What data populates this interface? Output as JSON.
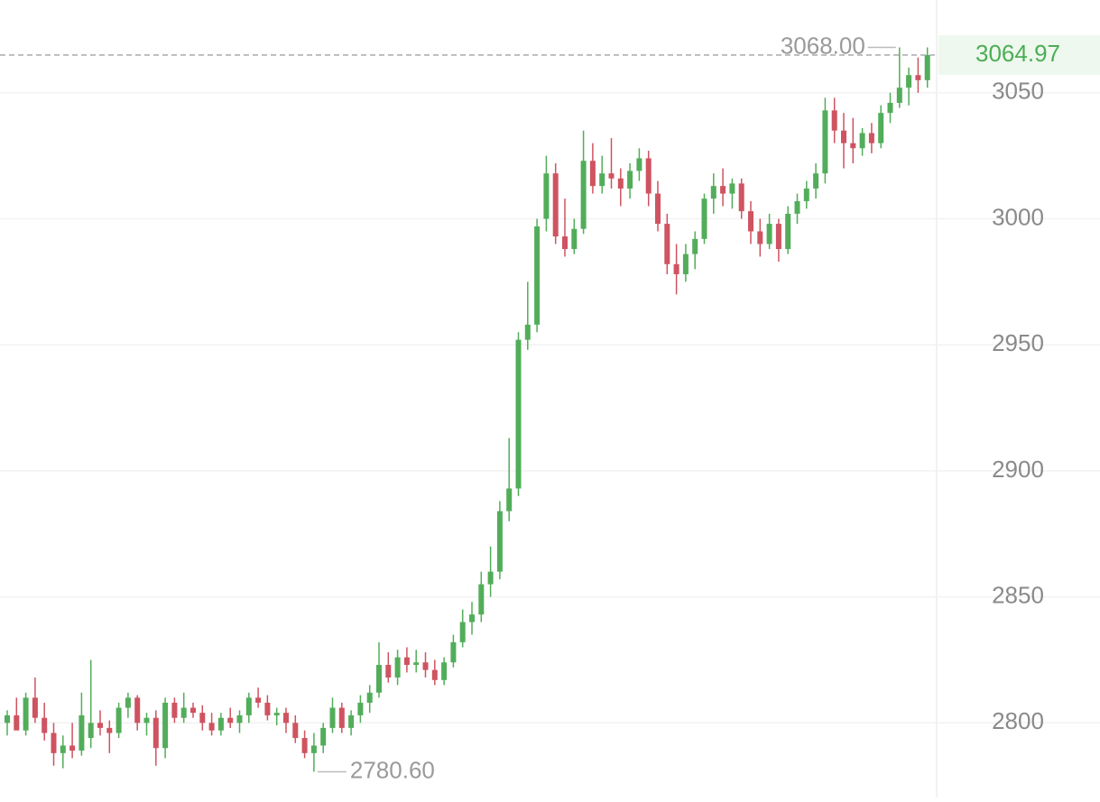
{
  "chart_data": {
    "type": "candlestick",
    "up_color": "#52ad5a",
    "down_color": "#cf5360",
    "grid": true,
    "ylim": [
      2770.4,
      3086.8
    ],
    "yticks": [
      2800,
      2850,
      2900,
      2950,
      3000,
      3050
    ],
    "last_price": {
      "value": 3064.97,
      "label": "3064.97"
    },
    "high_annotation": {
      "value": 3068,
      "label": "3068.00"
    },
    "low_annotation": {
      "value": 2780.6,
      "label": "2780.60"
    },
    "open": [
      2800,
      2803,
      2797,
      2810,
      2802,
      2796,
      2788,
      2791,
      2789,
      2794,
      2800,
      2798,
      2796,
      2806,
      2810,
      2800,
      2802,
      2790,
      2808,
      2802,
      2806,
      2804,
      2800,
      2797,
      2802,
      2800,
      2803,
      2810,
      2808,
      2803,
      2804,
      2800,
      2794,
      2788,
      2791,
      2798,
      2806,
      2798,
      2803,
      2808,
      2812,
      2823,
      2818,
      2826,
      2823,
      2824,
      2821,
      2817,
      2824,
      2832,
      2840,
      2843,
      2855,
      2860,
      2884,
      2893,
      2952,
      2958,
      3000,
      3018,
      2993,
      2988,
      2996,
      3023,
      3013,
      3018,
      3016,
      3012,
      3019,
      3024,
      3010,
      2998,
      2982,
      2978,
      2986,
      2992,
      3008,
      3013,
      3010,
      3014,
      3003,
      2995,
      2990,
      2998,
      2988,
      3002,
      3007,
      3012,
      3018,
      3043,
      3035,
      3030,
      3028,
      3034,
      3030,
      3042,
      3046,
      3052,
      3057,
      3055
    ],
    "high": [
      2805,
      2810,
      2812,
      2818,
      2808,
      2800,
      2795,
      2800,
      2812,
      2825,
      2805,
      2801,
      2808,
      2812,
      2811,
      2804,
      2805,
      2810,
      2810,
      2812,
      2808,
      2807,
      2804,
      2804,
      2806,
      2805,
      2812,
      2814,
      2811,
      2806,
      2806,
      2803,
      2797,
      2796,
      2800,
      2810,
      2808,
      2805,
      2811,
      2815,
      2832,
      2828,
      2829,
      2830,
      2829,
      2828,
      2825,
      2826,
      2835,
      2845,
      2848,
      2860,
      2870,
      2888,
      2913,
      2955,
      2975,
      3000,
      3025,
      3022,
      3008,
      3000,
      3035,
      3030,
      3025,
      3032,
      3020,
      3022,
      3028,
      3027,
      3015,
      3002,
      2990,
      2990,
      2995,
      3010,
      3018,
      3020,
      3016,
      3016,
      3007,
      3000,
      3002,
      3000,
      3005,
      3010,
      3015,
      3022,
      3048,
      3048,
      3042,
      3040,
      3036,
      3038,
      3045,
      3050,
      3068,
      3060,
      3064,
      3068
    ],
    "low": [
      2795,
      2798,
      2795,
      2800,
      2793,
      2783,
      2782,
      2786,
      2787,
      2790,
      2795,
      2788,
      2794,
      2802,
      2797,
      2795,
      2783,
      2786,
      2800,
      2800,
      2802,
      2797,
      2795,
      2795,
      2798,
      2796,
      2800,
      2806,
      2801,
      2799,
      2796,
      2792,
      2786,
      2780.6,
      2788,
      2796,
      2796,
      2795,
      2800,
      2804,
      2810,
      2816,
      2815,
      2820,
      2820,
      2818,
      2815,
      2815,
      2822,
      2830,
      2835,
      2840,
      2850,
      2857,
      2880,
      2890,
      2948,
      2955,
      2995,
      2990,
      2985,
      2986,
      2994,
      3010,
      3010,
      3012,
      3005,
      3008,
      3015,
      3005,
      2995,
      2978,
      2970,
      2975,
      2980,
      2990,
      3002,
      3005,
      3004,
      3000,
      2990,
      2985,
      2988,
      2983,
      2986,
      2998,
      3004,
      3008,
      3014,
      3030,
      3020,
      3022,
      3025,
      3026,
      3028,
      3038,
      3044,
      3045,
      3050,
      3052
    ],
    "close": [
      2803,
      2797,
      2810,
      2802,
      2796,
      2788,
      2791,
      2789,
      2803,
      2800,
      2798,
      2796,
      2806,
      2810,
      2800,
      2802,
      2790,
      2808,
      2802,
      2806,
      2804,
      2800,
      2797,
      2802,
      2800,
      2803,
      2810,
      2808,
      2803,
      2804,
      2800,
      2794,
      2788,
      2791,
      2798,
      2806,
      2798,
      2803,
      2808,
      2812,
      2823,
      2818,
      2826,
      2823,
      2824,
      2821,
      2817,
      2824,
      2832,
      2840,
      2843,
      2855,
      2860,
      2884,
      2893,
      2952,
      2958,
      2997,
      3018,
      2993,
      2988,
      2996,
      3023,
      3013,
      3018,
      3016,
      3012,
      3019,
      3024,
      3010,
      2998,
      2982,
      2978,
      2986,
      2992,
      3008,
      3013,
      3010,
      3014,
      3003,
      2995,
      2990,
      2998,
      2988,
      3002,
      3007,
      3012,
      3018,
      3043,
      3035,
      3030,
      3028,
      3034,
      3030,
      3042,
      3046,
      3052,
      3057,
      3055,
      3064.97
    ]
  }
}
